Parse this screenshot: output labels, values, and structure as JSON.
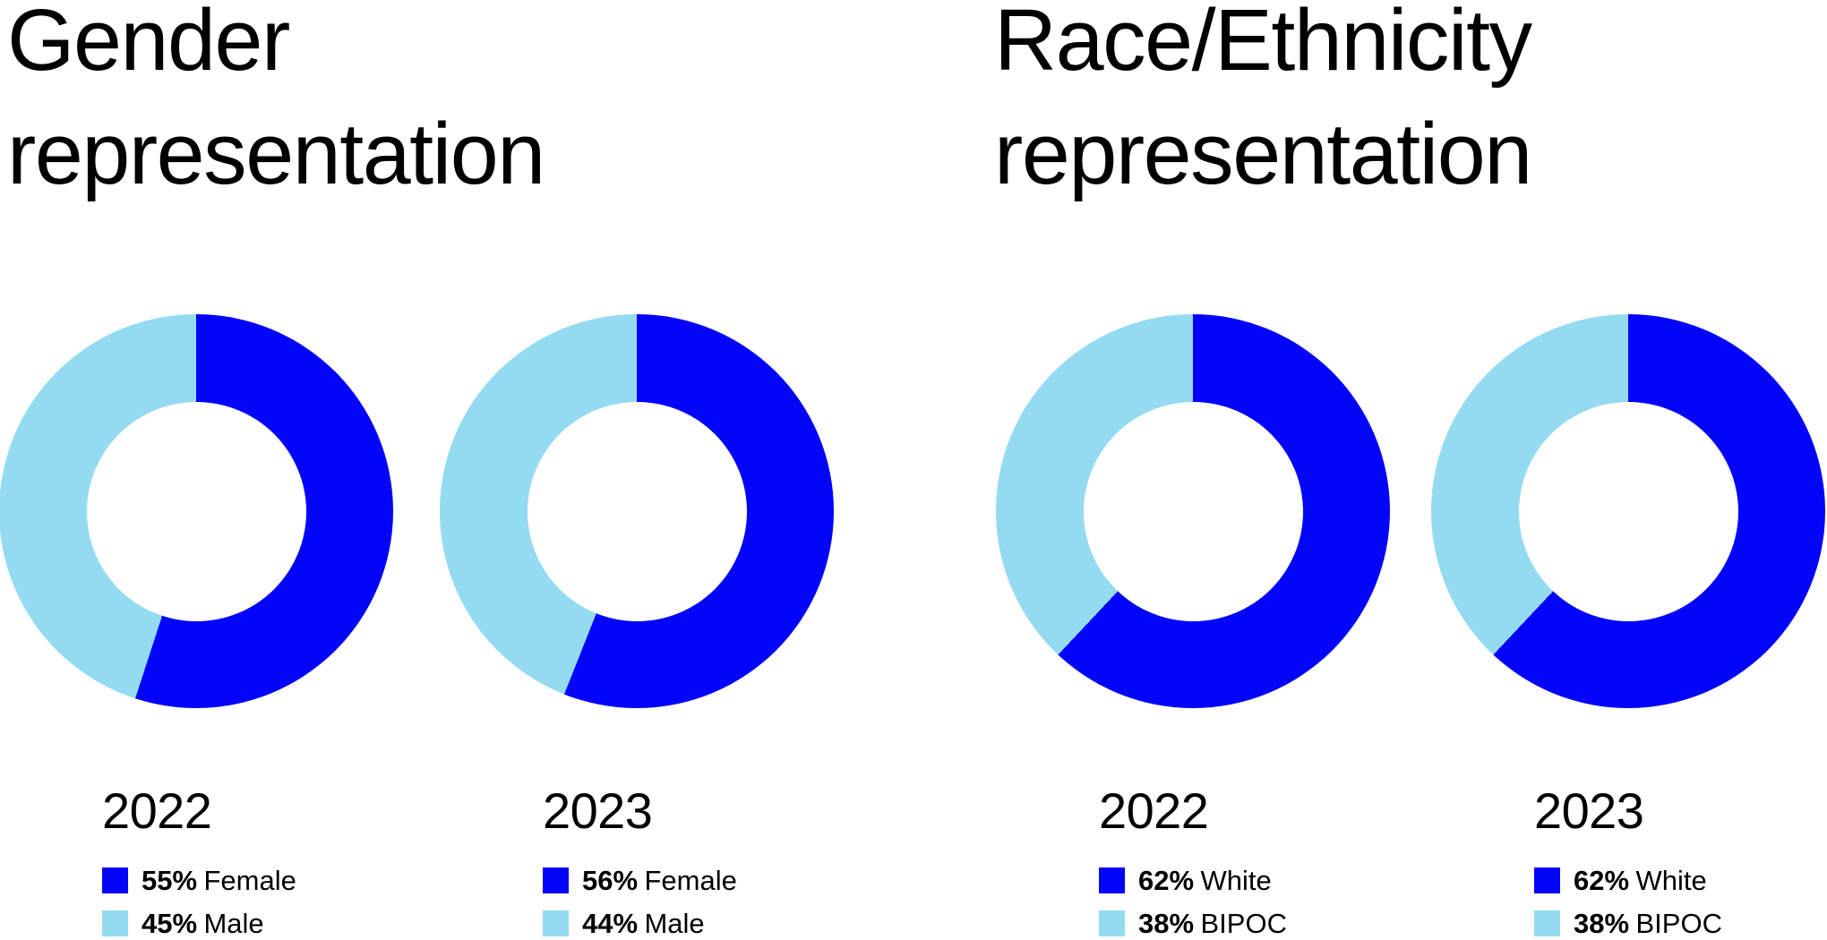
{
  "colors": {
    "primary": "#0404fa",
    "secondary": "#94dbf2",
    "text": "#000000",
    "background": "#ffffff"
  },
  "sections": [
    {
      "title": "Gender representation"
    },
    {
      "title": "Race/Ethnicity representation"
    }
  ],
  "chart_data": [
    {
      "type": "pie",
      "subtype": "donut",
      "section": "Gender representation",
      "year_label": "2022",
      "start_angle_deg": 0,
      "direction": "clockwise",
      "inner_radius_ratio": 0.56,
      "legend_position": "below",
      "slices": [
        {
          "label": "Female",
          "value": 55,
          "pct_text": "55%",
          "color_key": "primary"
        },
        {
          "label": "Male",
          "value": 45,
          "pct_text": "45%",
          "color_key": "secondary"
        }
      ]
    },
    {
      "type": "pie",
      "subtype": "donut",
      "section": "Gender representation",
      "year_label": "2023",
      "start_angle_deg": 0,
      "direction": "clockwise",
      "inner_radius_ratio": 0.56,
      "legend_position": "below",
      "slices": [
        {
          "label": "Female",
          "value": 56,
          "pct_text": "56%",
          "color_key": "primary"
        },
        {
          "label": "Male",
          "value": 44,
          "pct_text": "44%",
          "color_key": "secondary"
        }
      ]
    },
    {
      "type": "pie",
      "subtype": "donut",
      "section": "Race/Ethnicity representation",
      "year_label": "2022",
      "start_angle_deg": 0,
      "direction": "clockwise",
      "inner_radius_ratio": 0.56,
      "legend_position": "below",
      "slices": [
        {
          "label": "White",
          "value": 62,
          "pct_text": "62%",
          "color_key": "primary"
        },
        {
          "label": "BIPOC",
          "value": 38,
          "pct_text": "38%",
          "color_key": "secondary"
        }
      ]
    },
    {
      "type": "pie",
      "subtype": "donut",
      "section": "Race/Ethnicity representation",
      "year_label": "2023",
      "start_angle_deg": 0,
      "direction": "clockwise",
      "inner_radius_ratio": 0.56,
      "legend_position": "below",
      "slices": [
        {
          "label": "White",
          "value": 62,
          "pct_text": "62%",
          "color_key": "primary"
        },
        {
          "label": "BIPOC",
          "value": 38,
          "pct_text": "38%",
          "color_key": "secondary"
        }
      ]
    }
  ]
}
